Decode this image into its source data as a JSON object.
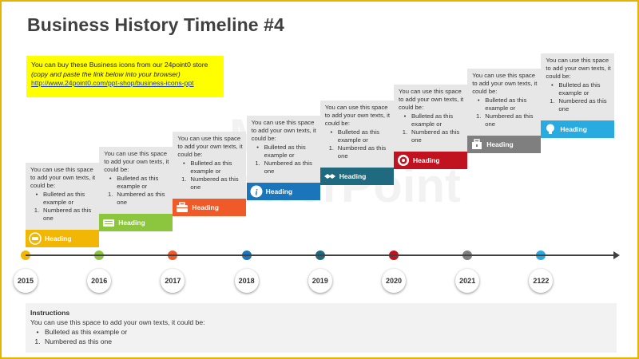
{
  "title": "Business History Timeline #4",
  "note": {
    "line1": "You can buy these Business icons from our 24point0 store",
    "line2": "(copy and paste the link below into your browser)",
    "line3": "http://www.24point0.com/ppt-shop/business-icons-ppt"
  },
  "watermark": {
    "line1": "Made for",
    "line2": "PowerPoint"
  },
  "milestones": [
    {
      "year": "2015",
      "heading": "Heading",
      "color": "#f2b705",
      "icon": "speech-icon",
      "intro": "You can use this space to add your own texts, it could be:",
      "bullet": "Bulleted as this example or",
      "numbered": "Numbered as this one"
    },
    {
      "year": "2016",
      "heading": "Heading",
      "color": "#8cc63f",
      "icon": "keyboard-icon",
      "intro": "You can use this space to add your own texts, it could be:",
      "bullet": "Bulleted as this example or",
      "numbered": "Numbered as this one"
    },
    {
      "year": "2017",
      "heading": "Heading",
      "color": "#f05a28",
      "icon": "briefcase-icon",
      "intro": "You can use this space to add your own texts, it could be:",
      "bullet": "Bulleted as this example or",
      "numbered": "Numbered as this one"
    },
    {
      "year": "2018",
      "heading": "Heading",
      "color": "#1b75bb",
      "icon": "info-icon",
      "intro": "You can use this space to add your own texts, it could be:",
      "bullet": "Bulleted as this example or",
      "numbered": "Numbered as this one"
    },
    {
      "year": "2019",
      "heading": "Heading",
      "color": "#1f6a7f",
      "icon": "handshake-icon",
      "intro": "You can use this space to add your own texts, it could be:",
      "bullet": "Bulleted as this example or",
      "numbered": "Numbered as this one"
    },
    {
      "year": "2020",
      "heading": "Heading",
      "color": "#c1121f",
      "icon": "target-icon",
      "intro": "You can use this space to add your own texts, it could be:",
      "bullet": "Bulleted as this example or",
      "numbered": "Numbered as this one"
    },
    {
      "year": "2021",
      "heading": "Heading",
      "color": "#7f7f7f",
      "icon": "case-icon",
      "intro": "You can use this space to add your own texts, it could be:",
      "bullet": "Bulleted as this example or",
      "numbered": "Numbered as this one"
    },
    {
      "year": "2122",
      "heading": "Heading",
      "color": "#29abe2",
      "icon": "lightbulb-icon",
      "intro": "You can use this space to add your own texts, it could be:",
      "bullet": "Bulleted as this example or",
      "numbered": "Numbered as this one"
    }
  ],
  "bullet_marker": "•",
  "number_marker": "1.",
  "axis_color": "#404040",
  "instructions": {
    "heading": "Instructions",
    "intro": "You can use this space to add your own texts, it could be:",
    "bullet": "Bulleted as this example or",
    "numbered": "Numbered as this one"
  }
}
